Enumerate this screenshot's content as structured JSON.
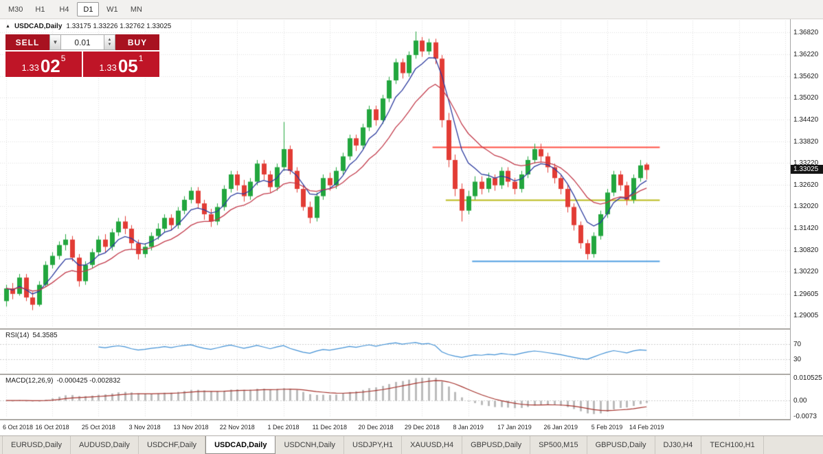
{
  "toolbar": {
    "timeframes": [
      {
        "label": "M30",
        "active": false
      },
      {
        "label": "H1",
        "active": false
      },
      {
        "label": "H4",
        "active": false
      },
      {
        "label": "D1",
        "active": true
      },
      {
        "label": "W1",
        "active": false
      },
      {
        "label": "MN",
        "active": false
      }
    ]
  },
  "icons": {
    "chart_icon": "▲",
    "dropdown_icon": "▼",
    "spin_up_icon": "▲",
    "spin_down_icon": "▼"
  },
  "chart_header": {
    "symbol": "USDCAD,Daily",
    "ohlc": "1.33175 1.33226 1.32762 1.33025"
  },
  "trade_panel": {
    "sell_label": "SELL",
    "buy_label": "BUY",
    "volume": "0.01",
    "bid": {
      "prefix": "1.33",
      "big": "02",
      "sup": "5"
    },
    "ask": {
      "prefix": "1.33",
      "big": "05",
      "sup": "1"
    }
  },
  "price_axis": {
    "labels": [
      "1.36820",
      "1.36220",
      "1.35620",
      "1.35020",
      "1.34420",
      "1.33820",
      "1.33220",
      "1.32620",
      "1.32020",
      "1.31420",
      "1.30820",
      "1.30220",
      "1.29605",
      "1.29005"
    ],
    "current_price": "1.33025"
  },
  "rsi_panel": {
    "name": "RSI(14)",
    "value": "54.3585",
    "levels": [
      "70",
      "30"
    ],
    "color": "#3f8fd4"
  },
  "macd_panel": {
    "name": "MACD(12,26,9)",
    "values": "-0.000425 -0.002832",
    "axis_labels": [
      "0.010525",
      "0.00",
      "-0.0073"
    ]
  },
  "colors": {
    "sell_buy_button_red": "#a81220",
    "price_box_red": "#bf1527",
    "up_candle": "#22a63e",
    "down_candle": "#e23c35"
  },
  "tabs": [
    {
      "label": "EURUSD,Daily",
      "active": false
    },
    {
      "label": "AUDUSD,Daily",
      "active": false
    },
    {
      "label": "USDCHF,Daily",
      "active": false
    },
    {
      "label": "USDCAD,Daily",
      "active": true
    },
    {
      "label": "USDCNH,Daily",
      "active": false
    },
    {
      "label": "USDJPY,H1",
      "active": false
    },
    {
      "label": "XAUUSD,H4",
      "active": false
    },
    {
      "label": "GBPUSD,Daily",
      "active": false
    },
    {
      "label": "SP500,M15",
      "active": false
    },
    {
      "label": "GBPUSD,Daily",
      "active": false
    },
    {
      "label": "DJ30,H4",
      "active": false
    },
    {
      "label": "TECH100,H1",
      "active": false
    }
  ],
  "chart_data": {
    "type": "candlestick",
    "symbol": "USDCAD",
    "timeframe": "Daily",
    "y_min": 1.288,
    "y_max": 1.37,
    "up_color": "#22a63e",
    "down_color": "#e23c35",
    "current_price": 1.33025,
    "candles": [
      [
        1.294,
        1.2985,
        1.2925,
        1.2975
      ],
      [
        1.2975,
        1.299,
        1.2945,
        1.296
      ],
      [
        1.296,
        1.3015,
        1.2955,
        1.3005
      ],
      [
        1.3005,
        1.3015,
        1.294,
        1.295
      ],
      [
        1.295,
        1.2965,
        1.2915,
        1.293
      ],
      [
        1.293,
        1.2995,
        1.2925,
        1.2985
      ],
      [
        1.2985,
        1.305,
        1.298,
        1.304
      ],
      [
        1.304,
        1.3075,
        1.303,
        1.3065
      ],
      [
        1.3065,
        1.3105,
        1.3055,
        1.3095
      ],
      [
        1.3095,
        1.3125,
        1.308,
        1.311
      ],
      [
        1.311,
        1.312,
        1.305,
        1.306
      ],
      [
        1.306,
        1.307,
        1.298,
        1.2995
      ],
      [
        1.2995,
        1.305,
        1.2985,
        1.304
      ],
      [
        1.304,
        1.3085,
        1.303,
        1.3075
      ],
      [
        1.3075,
        1.312,
        1.3065,
        1.311
      ],
      [
        1.311,
        1.3125,
        1.3075,
        1.309
      ],
      [
        1.309,
        1.314,
        1.308,
        1.313
      ],
      [
        1.313,
        1.317,
        1.312,
        1.316
      ],
      [
        1.316,
        1.3175,
        1.3125,
        1.314
      ],
      [
        1.314,
        1.315,
        1.3085,
        1.31
      ],
      [
        1.31,
        1.311,
        1.3055,
        1.307
      ],
      [
        1.307,
        1.31,
        1.306,
        1.309
      ],
      [
        1.309,
        1.313,
        1.308,
        1.312
      ],
      [
        1.312,
        1.3155,
        1.311,
        1.314
      ],
      [
        1.314,
        1.318,
        1.313,
        1.317
      ],
      [
        1.317,
        1.318,
        1.3135,
        1.315
      ],
      [
        1.315,
        1.32,
        1.314,
        1.319
      ],
      [
        1.319,
        1.323,
        1.318,
        1.322
      ],
      [
        1.322,
        1.3255,
        1.321,
        1.3245
      ],
      [
        1.3245,
        1.3255,
        1.3195,
        1.321
      ],
      [
        1.321,
        1.322,
        1.3165,
        1.318
      ],
      [
        1.318,
        1.3195,
        1.3145,
        1.316
      ],
      [
        1.316,
        1.321,
        1.315,
        1.32
      ],
      [
        1.32,
        1.326,
        1.319,
        1.325
      ],
      [
        1.325,
        1.33,
        1.324,
        1.329
      ],
      [
        1.329,
        1.33,
        1.3245,
        1.326
      ],
      [
        1.326,
        1.3275,
        1.3215,
        1.323
      ],
      [
        1.323,
        1.328,
        1.322,
        1.327
      ],
      [
        1.327,
        1.333,
        1.326,
        1.332
      ],
      [
        1.332,
        1.333,
        1.3275,
        1.329
      ],
      [
        1.329,
        1.33,
        1.324,
        1.3255
      ],
      [
        1.3255,
        1.332,
        1.3245,
        1.331
      ],
      [
        1.331,
        1.3435,
        1.33,
        1.336
      ],
      [
        1.336,
        1.337,
        1.329,
        1.33
      ],
      [
        1.33,
        1.331,
        1.324,
        1.325
      ],
      [
        1.325,
        1.326,
        1.319,
        1.32
      ],
      [
        1.32,
        1.3215,
        1.3155,
        1.317
      ],
      [
        1.317,
        1.324,
        1.316,
        1.323
      ],
      [
        1.323,
        1.329,
        1.322,
        1.328
      ],
      [
        1.328,
        1.3295,
        1.3245,
        1.326
      ],
      [
        1.326,
        1.331,
        1.325,
        1.33
      ],
      [
        1.33,
        1.335,
        1.329,
        1.334
      ],
      [
        1.334,
        1.34,
        1.333,
        1.339
      ],
      [
        1.339,
        1.34,
        1.3355,
        1.337
      ],
      [
        1.337,
        1.343,
        1.336,
        1.342
      ],
      [
        1.342,
        1.348,
        1.341,
        1.347
      ],
      [
        1.347,
        1.348,
        1.3425,
        1.344
      ],
      [
        1.344,
        1.351,
        1.343,
        1.35
      ],
      [
        1.35,
        1.356,
        1.349,
        1.355
      ],
      [
        1.355,
        1.361,
        1.354,
        1.36
      ],
      [
        1.36,
        1.361,
        1.3555,
        1.357
      ],
      [
        1.357,
        1.363,
        1.356,
        1.362
      ],
      [
        1.362,
        1.3685,
        1.361,
        1.366
      ],
      [
        1.366,
        1.367,
        1.3615,
        1.363
      ],
      [
        1.363,
        1.3665,
        1.362,
        1.3655
      ],
      [
        1.3655,
        1.3665,
        1.3595,
        1.361
      ],
      [
        1.361,
        1.362,
        1.342,
        1.344
      ],
      [
        1.344,
        1.346,
        1.331,
        1.333
      ],
      [
        1.333,
        1.3345,
        1.323,
        1.325
      ],
      [
        1.325,
        1.3265,
        1.316,
        1.319
      ],
      [
        1.319,
        1.3245,
        1.318,
        1.323
      ],
      [
        1.323,
        1.3285,
        1.322,
        1.327
      ],
      [
        1.327,
        1.3285,
        1.3235,
        1.325
      ],
      [
        1.325,
        1.3295,
        1.324,
        1.328
      ],
      [
        1.328,
        1.329,
        1.3245,
        1.326
      ],
      [
        1.326,
        1.331,
        1.325,
        1.33
      ],
      [
        1.33,
        1.331,
        1.3255,
        1.327
      ],
      [
        1.327,
        1.328,
        1.3235,
        1.325
      ],
      [
        1.325,
        1.33,
        1.324,
        1.329
      ],
      [
        1.329,
        1.334,
        1.328,
        1.333
      ],
      [
        1.333,
        1.3375,
        1.332,
        1.336
      ],
      [
        1.336,
        1.3375,
        1.3325,
        1.334
      ],
      [
        1.334,
        1.335,
        1.3295,
        1.331
      ],
      [
        1.331,
        1.332,
        1.3265,
        1.328
      ],
      [
        1.328,
        1.329,
        1.3235,
        1.325
      ],
      [
        1.325,
        1.326,
        1.3185,
        1.32
      ],
      [
        1.32,
        1.321,
        1.3135,
        1.315
      ],
      [
        1.315,
        1.316,
        1.3085,
        1.31
      ],
      [
        1.31,
        1.311,
        1.3055,
        1.307
      ],
      [
        1.307,
        1.313,
        1.306,
        1.312
      ],
      [
        1.312,
        1.319,
        1.311,
        1.318
      ],
      [
        1.318,
        1.325,
        1.317,
        1.324
      ],
      [
        1.324,
        1.33,
        1.323,
        1.329
      ],
      [
        1.329,
        1.33,
        1.3245,
        1.326
      ],
      [
        1.326,
        1.327,
        1.3205,
        1.322
      ],
      [
        1.322,
        1.329,
        1.321,
        1.328
      ],
      [
        1.328,
        1.333,
        1.327,
        1.3315
      ],
      [
        1.33175,
        1.33226,
        1.32762,
        1.33025
      ]
    ],
    "date_ticks": [
      {
        "i": 0,
        "label": "6 Oct 2018"
      },
      {
        "i": 7,
        "label": "16 Oct 2018"
      },
      {
        "i": 14,
        "label": "25 Oct 2018"
      },
      {
        "i": 21,
        "label": "3 Nov 2018"
      },
      {
        "i": 28,
        "label": "13 Nov 2018"
      },
      {
        "i": 35,
        "label": "22 Nov 2018"
      },
      {
        "i": 42,
        "label": "1 Dec 2018"
      },
      {
        "i": 49,
        "label": "11 Dec 2018"
      },
      {
        "i": 56,
        "label": "20 Dec 2018"
      },
      {
        "i": 63,
        "label": "29 Dec 2018"
      },
      {
        "i": 70,
        "label": "8 Jan 2019"
      },
      {
        "i": 77,
        "label": "17 Jan 2019"
      },
      {
        "i": 84,
        "label": "26 Jan 2019"
      },
      {
        "i": 91,
        "label": "5 Feb 2019"
      },
      {
        "i": 97,
        "label": "14 Feb 2019"
      }
    ],
    "ma_fast": {
      "type": "EMA",
      "period": 6,
      "color": "#2b3a9e"
    },
    "ma_slow": {
      "type": "EMA",
      "period": 14,
      "color": "#c23a4a"
    },
    "hlines": [
      {
        "price": 1.3365,
        "color": "#ff4f43",
        "from_index": 65,
        "to_index": 99
      },
      {
        "price": 1.322,
        "color": "#b9b919",
        "from_index": 67,
        "to_index": 99
      },
      {
        "price": 1.305,
        "color": "#4d9de0",
        "from_index": 71,
        "to_index": 99
      }
    ],
    "rsi": {
      "period": 14,
      "last_value": 54.3585,
      "levels": [
        70,
        30
      ]
    },
    "macd": {
      "fast": 12,
      "slow": 26,
      "signal": 9,
      "last_main": -0.000425,
      "last_signal": -0.002832,
      "scale_max": 0.010525,
      "scale_min": -0.0073,
      "hist_color": "#bbbbbb",
      "signal_color": "#a4302a"
    }
  }
}
